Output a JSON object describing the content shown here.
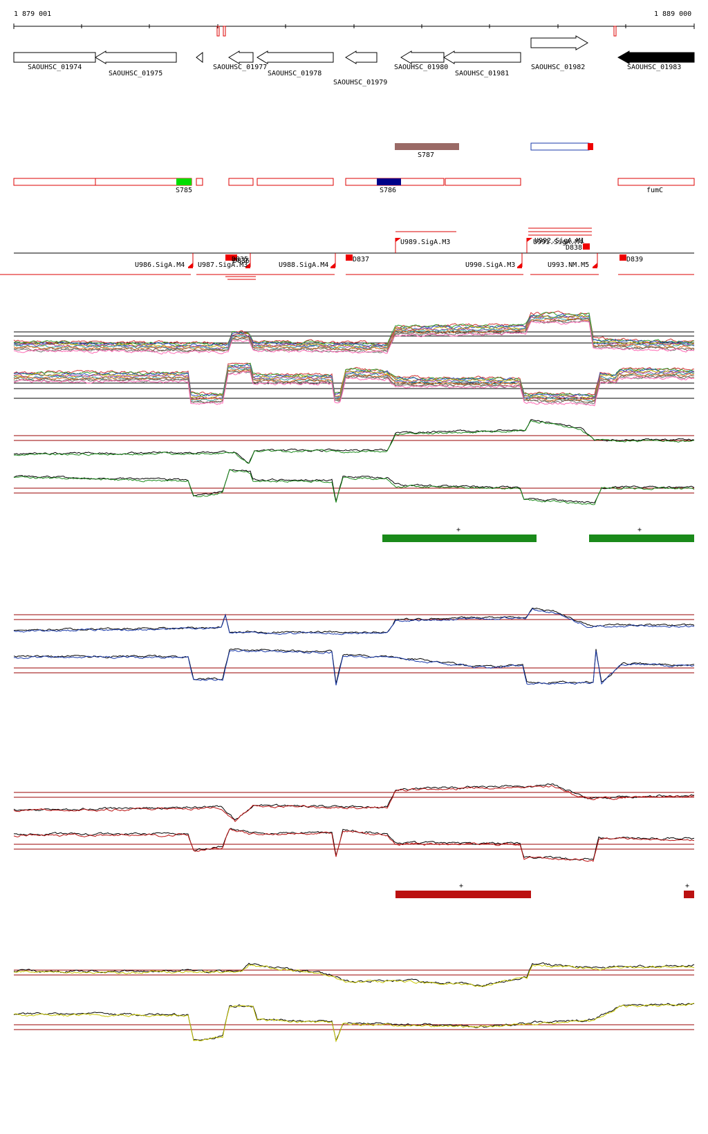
{
  "coords": {
    "start": "1 879 001",
    "end": "1 889 000"
  },
  "genes": [
    {
      "label": "SAOUHSC_01974"
    },
    {
      "label": "SAOUHSC_01975"
    },
    {
      "label": "SAOUHSC_01977"
    },
    {
      "label": "SAOUHSC_01978"
    },
    {
      "label": "SAOUHSC_01979"
    },
    {
      "label": "SAOUHSC_01980"
    },
    {
      "label": "SAOUHSC_01981"
    },
    {
      "label": "SAOUHSC_01982"
    },
    {
      "label": "SAOUHSC_01983"
    }
  ],
  "features": {
    "s785": "S785",
    "s786": "S786",
    "s787": "S787",
    "fumc": "fumC"
  },
  "promoters": {
    "u986": "U986.SigA.M4",
    "u987": "U987.SigA.M3",
    "u988": "U988.SigA.M4",
    "u989": "U989.SigA.M3",
    "u990": "U990.SigA.M3",
    "u991": "U991.SigA.M4",
    "u992": "U992.SigA.M1",
    "u993": "U993.NM.M5",
    "d835": "D835",
    "d836": "D836",
    "d837": "D837",
    "d838": "D838",
    "d839": "D839"
  },
  "plus_marks": [
    "+",
    "+",
    "+",
    "+"
  ],
  "colors": {
    "feature_border": "#dd0000",
    "s785": "#00dd00",
    "s786": "#000088",
    "s787": "#9a6a66",
    "track_green": "#1a8a1a",
    "track_blue": "#1a3aaa",
    "track_red": "#bb1111",
    "track_yellow": "#c8c800",
    "threshold": "#990000",
    "gene_solid": "#000000"
  }
}
